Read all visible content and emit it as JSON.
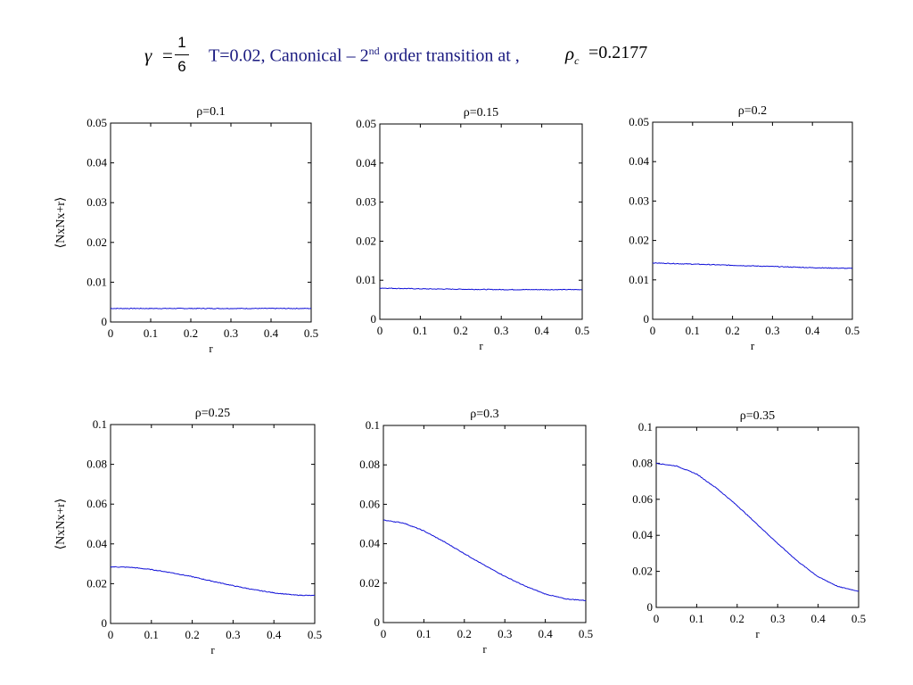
{
  "header": {
    "gamma_symbol": "γ",
    "equals": "=",
    "frac_num": "1",
    "frac_den": "6",
    "text_main": "T=0.02, Canonical – 2",
    "text_sup": "nd",
    "text_tail": " order transition at ,",
    "rho_c_symbol": "ρ",
    "rho_c_sub": "c",
    "rho_c_value": "=0.2177"
  },
  "colors": {
    "line": "#1010d8",
    "axis": "#000000"
  },
  "chart_data": [
    {
      "type": "line",
      "title": "ρ=0.1",
      "xlabel": "r",
      "ylabel": "⟨NxNx+r⟩",
      "xlim": [
        0,
        0.5
      ],
      "ylim": [
        0,
        0.05
      ],
      "xticks": [
        0,
        0.1,
        0.2,
        0.3,
        0.4,
        0.5
      ],
      "xtick_labels": [
        "0",
        "0.1",
        "0.2",
        "0.3",
        "0.4",
        "0.5"
      ],
      "yticks": [
        0,
        0.01,
        0.02,
        0.03,
        0.04,
        0.05
      ],
      "ytick_labels": [
        "0",
        "0.01",
        "0.02",
        "0.03",
        "0.04",
        "0.05"
      ],
      "x": [
        0,
        0.1,
        0.2,
        0.3,
        0.4,
        0.5
      ],
      "y": [
        0.0034,
        0.0034,
        0.0034,
        0.0034,
        0.0034,
        0.0034
      ]
    },
    {
      "type": "line",
      "title": "ρ=0.15",
      "xlabel": "r",
      "ylabel": "",
      "xlim": [
        0,
        0.5
      ],
      "ylim": [
        0,
        0.05
      ],
      "xticks": [
        0,
        0.1,
        0.2,
        0.3,
        0.4,
        0.5
      ],
      "xtick_labels": [
        "0",
        "0.1",
        "0.2",
        "0.3",
        "0.4",
        "0.5"
      ],
      "yticks": [
        0,
        0.01,
        0.02,
        0.03,
        0.04,
        0.05
      ],
      "ytick_labels": [
        "0",
        "0.01",
        "0.02",
        "0.03",
        "0.04",
        "0.05"
      ],
      "x": [
        0,
        0.1,
        0.2,
        0.3,
        0.4,
        0.5
      ],
      "y": [
        0.008,
        0.0078,
        0.0077,
        0.0076,
        0.0076,
        0.0076
      ]
    },
    {
      "type": "line",
      "title": "ρ=0.2",
      "xlabel": "r",
      "ylabel": "",
      "xlim": [
        0,
        0.5
      ],
      "ylim": [
        0,
        0.05
      ],
      "xticks": [
        0,
        0.1,
        0.2,
        0.3,
        0.4,
        0.5
      ],
      "xtick_labels": [
        "0",
        "0.1",
        "0.2",
        "0.3",
        "0.4",
        "0.5"
      ],
      "yticks": [
        0,
        0.01,
        0.02,
        0.03,
        0.04,
        0.05
      ],
      "ytick_labels": [
        "0",
        "0.01",
        "0.02",
        "0.03",
        "0.04",
        "0.05"
      ],
      "x": [
        0,
        0.1,
        0.2,
        0.3,
        0.4,
        0.5
      ],
      "y": [
        0.0143,
        0.014,
        0.0137,
        0.0134,
        0.0131,
        0.0129
      ]
    },
    {
      "type": "line",
      "title": "ρ=0.25",
      "xlabel": "r",
      "ylabel": "⟨NxNx+r⟩",
      "xlim": [
        0,
        0.5
      ],
      "ylim": [
        0,
        0.1
      ],
      "xticks": [
        0,
        0.1,
        0.2,
        0.3,
        0.4,
        0.5
      ],
      "xtick_labels": [
        "0",
        "0.1",
        "0.2",
        "0.3",
        "0.4",
        "0.5"
      ],
      "yticks": [
        0,
        0.02,
        0.04,
        0.06,
        0.08,
        0.1
      ],
      "ytick_labels": [
        "0",
        "0.02",
        "0.04",
        "0.06",
        "0.08",
        "0.1"
      ],
      "x": [
        0,
        0.05,
        0.1,
        0.15,
        0.2,
        0.25,
        0.3,
        0.35,
        0.4,
        0.45,
        0.5
      ],
      "y": [
        0.0285,
        0.0282,
        0.0271,
        0.0255,
        0.0235,
        0.0212,
        0.019,
        0.017,
        0.0154,
        0.0143,
        0.014
      ]
    },
    {
      "type": "line",
      "title": "ρ=0.3",
      "xlabel": "r",
      "ylabel": "",
      "xlim": [
        0,
        0.5
      ],
      "ylim": [
        0,
        0.1
      ],
      "xticks": [
        0,
        0.1,
        0.2,
        0.3,
        0.4,
        0.5
      ],
      "xtick_labels": [
        "0",
        "0.1",
        "0.2",
        "0.3",
        "0.4",
        "0.5"
      ],
      "yticks": [
        0,
        0.02,
        0.04,
        0.06,
        0.08,
        0.1
      ],
      "ytick_labels": [
        "0",
        "0.02",
        "0.04",
        "0.06",
        "0.08",
        "0.1"
      ],
      "x": [
        0,
        0.05,
        0.1,
        0.15,
        0.2,
        0.25,
        0.3,
        0.35,
        0.4,
        0.45,
        0.5
      ],
      "y": [
        0.052,
        0.0505,
        0.0465,
        0.041,
        0.035,
        0.029,
        0.0235,
        0.0185,
        0.0145,
        0.012,
        0.0112
      ]
    },
    {
      "type": "line",
      "title": "ρ=0.35",
      "xlabel": "r",
      "ylabel": "",
      "xlim": [
        0,
        0.5
      ],
      "ylim": [
        0,
        0.1
      ],
      "xticks": [
        0,
        0.1,
        0.2,
        0.3,
        0.4,
        0.5
      ],
      "xtick_labels": [
        "0",
        "0.1",
        "0.2",
        "0.3",
        "0.4",
        "0.5"
      ],
      "yticks": [
        0,
        0.02,
        0.04,
        0.06,
        0.08,
        0.1
      ],
      "ytick_labels": [
        "0",
        "0.02",
        "0.04",
        "0.06",
        "0.08",
        "0.1"
      ],
      "x": [
        0,
        0.05,
        0.1,
        0.15,
        0.2,
        0.25,
        0.3,
        0.35,
        0.4,
        0.45,
        0.5
      ],
      "y": [
        0.08,
        0.0785,
        0.074,
        0.066,
        0.0565,
        0.046,
        0.0355,
        0.0255,
        0.017,
        0.0115,
        0.009
      ]
    }
  ]
}
